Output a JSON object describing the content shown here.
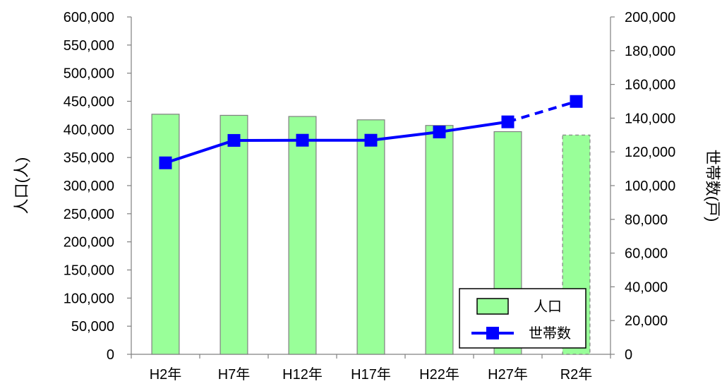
{
  "chart_data": {
    "type": "bar",
    "categories": [
      "H2年",
      "H7年",
      "H12年",
      "H17年",
      "H22年",
      "H27年",
      "R2年"
    ],
    "series": [
      {
        "name": "人口",
        "type": "bar",
        "axis": "left",
        "values": [
          427000,
          425000,
          423000,
          417000,
          407000,
          396000,
          390000
        ],
        "estimated_from_index": 6,
        "color": "#99ff99",
        "stroke": "#7f7f7f"
      },
      {
        "name": "世帯数",
        "type": "line",
        "axis": "right",
        "values": [
          113500,
          126800,
          126900,
          126900,
          131800,
          137800,
          149900
        ],
        "estimated_from_index": 6,
        "color": "#0000ff"
      }
    ],
    "ylabel": "人口(人)",
    "y2label": "世帯数(戸)",
    "xlabel": "",
    "ylim": [
      0,
      600000
    ],
    "y2lim": [
      0,
      200000
    ],
    "yticks": [
      0,
      50000,
      100000,
      150000,
      200000,
      250000,
      300000,
      350000,
      400000,
      450000,
      500000,
      550000,
      600000
    ],
    "y2ticks": [
      0,
      20000,
      40000,
      60000,
      80000,
      100000,
      120000,
      140000,
      160000,
      180000,
      200000
    ],
    "yticklabels": [
      "0",
      "50,000",
      "100,000",
      "150,000",
      "200,000",
      "250,000",
      "300,000",
      "350,000",
      "400,000",
      "450,000",
      "500,000",
      "550,000",
      "600,000"
    ],
    "y2ticklabels": [
      "0",
      "20,000",
      "40,000",
      "60,000",
      "80,000",
      "100,000",
      "120,000",
      "140,000",
      "160,000",
      "180,000",
      "200,000"
    ],
    "grid": false,
    "legend_position": "bottom-right"
  }
}
